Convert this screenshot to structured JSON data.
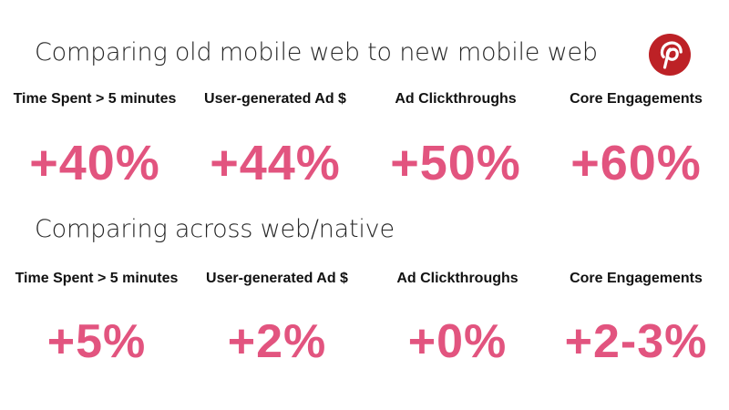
{
  "section1": {
    "heading": "Comparing old mobile web to new mobile web",
    "metrics": [
      {
        "label": "Time Spent > 5 minutes",
        "value": "+40%"
      },
      {
        "label": "User-generated Ad $",
        "value": "+44%"
      },
      {
        "label": "Ad Clickthroughs",
        "value": "+50%"
      },
      {
        "label": "Core Engagements",
        "value": "+60%"
      }
    ]
  },
  "section2": {
    "heading": "Comparing across web/native",
    "metrics": [
      {
        "label": "Time Spent > 5 minutes",
        "value": "+5%"
      },
      {
        "label": "User-generated Ad $",
        "value": "+2%"
      },
      {
        "label": "Ad Clickthroughs",
        "value": "+0%"
      },
      {
        "label": "Core Engagements",
        "value": "+2-3%"
      }
    ]
  },
  "logo": {
    "icon": "pinterest-logo-icon"
  },
  "colors": {
    "accent": "#e2547f",
    "brand_logo": "#bd2126",
    "heading": "#262626",
    "label": "#111111",
    "background": "#ffffff"
  }
}
